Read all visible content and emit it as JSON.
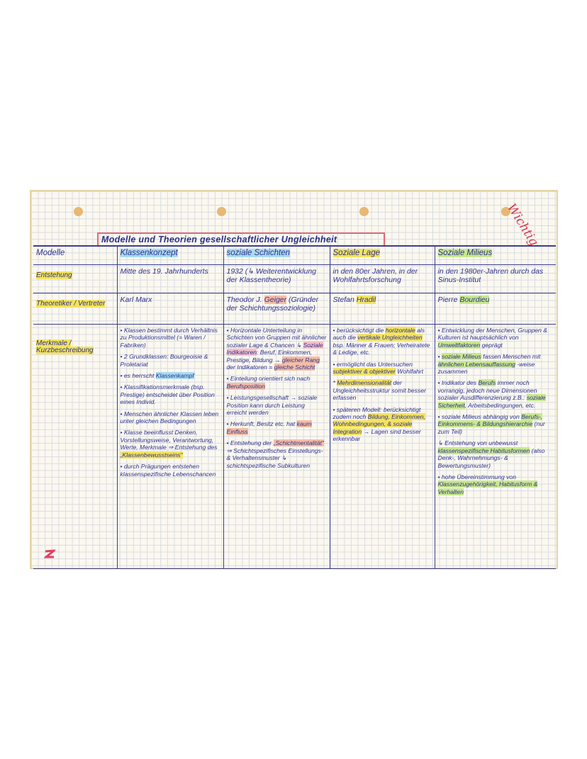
{
  "annotation": "Wichtig",
  "title": "Modelle und Theorien gesellschaftlicher Ungleichheit",
  "header": {
    "row_label": "Modelle",
    "columns": [
      {
        "label": "Klassenkonzept",
        "highlight": "blue"
      },
      {
        "label": "soziale Schichten",
        "highlight": "blue"
      },
      {
        "label": "Soziale Lage",
        "highlight": "yellow"
      },
      {
        "label": "Soziale Milieus",
        "highlight": "green"
      }
    ]
  },
  "rows": [
    {
      "label": "Entstehung",
      "highlight": "yellow",
      "cells": [
        "Mitte des 19. Jahrhunderts",
        "1932 (↳ Weiterentwicklung der Klassentheorie)",
        "in den 80er Jahren, in der Wohlfahrtsforschung",
        "in den 1980er-Jahren durch das Sinus-Institut"
      ]
    },
    {
      "label": "Theoretiker / Vertreter",
      "highlight": "yellow",
      "cells": [
        [
          [
            {
              "t": "Karl Marx"
            }
          ]
        ],
        [
          [
            {
              "t": "Theodor J. "
            },
            {
              "t": "Geiger",
              "hl": "orange"
            },
            {
              "t": " (Gründer der Schichtungssoziologie)"
            }
          ]
        ],
        [
          [
            {
              "t": "Stefan "
            },
            {
              "t": "Hradil",
              "hl": "yellow"
            }
          ]
        ],
        [
          [
            {
              "t": "Pierre "
            },
            {
              "t": "Bourdieu",
              "hl": "green"
            }
          ]
        ]
      ]
    },
    {
      "label": "Merkmale / Kurzbeschreibung",
      "highlight": "yellow",
      "cells": [
        [
          [
            {
              "t": "• Klassen bestimmt durch Verhältnis zu Produktionsmittel (= Waren / Fabriken)"
            }
          ],
          [
            {
              "t": "• 2 Grundklassen: Bourgeoisie & Proletariat"
            }
          ],
          [
            {
              "t": "• es herrscht "
            },
            {
              "t": "Klassenkampf",
              "hl": "blue"
            }
          ],
          [
            {
              "t": "• Klassifikationsmerkmale (bsp. Prestige) entscheidet über Position eines Individ."
            }
          ],
          [
            {
              "t": "• Menschen ähnlicher Klassen leben unter gleichen Bedingungen"
            }
          ],
          [
            {
              "t": "• Klasse beeinflusst Denken, Vorstellungsweise, Verantwortung, Werte, Merkmale ⇒ Entstehung des "
            },
            {
              "t": "„Klassenbewusstseins\"",
              "hl": "yellow"
            }
          ],
          [
            {
              "t": "• durch Prägungen entstehen klassenspezifische Lebenschancen"
            }
          ]
        ],
        [
          [
            {
              "t": "• Horizontale Unterteilung in Schichten von Gruppen mit ähnlicher sozialer Lage & Chancen ↳ "
            },
            {
              "t": "Soziale Indikatoren",
              "hl": "pink"
            },
            {
              "t": ": Beruf, Einkommen, Prestige, Bildung → "
            },
            {
              "t": "gleicher Rang",
              "hl": "orange"
            },
            {
              "t": " der Indikatoren = "
            },
            {
              "t": "gleiche Schicht",
              "hl": "orange"
            }
          ],
          [
            {
              "t": "• Einteilung orientiert sich nach "
            },
            {
              "t": "Berufsposition",
              "hl": "orange"
            }
          ],
          [
            {
              "t": "• Leistungsgesellschaft → soziale Position kann durch Leistung erreicht werden"
            }
          ],
          [
            {
              "t": "• Herkunft, Besitz etc. hat "
            },
            {
              "t": "kaum Einfluss",
              "hl": "orange"
            }
          ],
          [
            {
              "t": "• Entstehung der "
            },
            {
              "t": "„Schichtmentalität\"",
              "hl": "orange"
            },
            {
              "t": " ⇒ Schichtspezifisches Einstellungs- & Verhaltensmuster ↳ schichtspezifische Subkulturen"
            }
          ]
        ],
        [
          [
            {
              "t": "• berücksichtigt die "
            },
            {
              "t": "horizontale",
              "hl": "yellow"
            },
            {
              "t": " als auch die "
            },
            {
              "t": "vertikale Ungleichheiten",
              "hl": "yellow"
            },
            {
              "t": " bsp. Männer & Frauen; Verheiratete & Ledige, etc."
            }
          ],
          [
            {
              "t": "• ermöglicht das Untersuchen "
            },
            {
              "t": "subjektiver & objektiver",
              "hl": "yellow"
            },
            {
              "t": " Wohlfahrt"
            }
          ],
          [
            {
              "t": "* "
            },
            {
              "t": "Mehrdimensionalität",
              "hl": "yellow"
            },
            {
              "t": " der Ungleichheitsstruktur somit besser erfassen"
            }
          ],
          [
            {
              "t": "• späteren Modell: berücksichtigt zudem noch "
            },
            {
              "t": "Bildung, Einkommen, Wohnbedingungen, & soziale Integration",
              "hl": "yellow"
            },
            {
              "t": " → Lagen sind besser erkennbar"
            }
          ]
        ],
        [
          [
            {
              "t": "• Entwicklung der Menschen, Gruppen & Kulturen ist hauptsächlich von "
            },
            {
              "t": "Umweltfaktoren",
              "hl": "green"
            },
            {
              "t": " geprägt"
            }
          ],
          [
            {
              "t": "• "
            },
            {
              "t": "soziale Milieus",
              "hl": "green"
            },
            {
              "t": " fassen Menschen mit "
            },
            {
              "t": "ähnlichen Lebensauffassung",
              "hl": "green"
            },
            {
              "t": " -weise zusammen"
            }
          ],
          [
            {
              "t": "• Indikator des "
            },
            {
              "t": "Berufs",
              "hl": "green"
            },
            {
              "t": " immer noch vorrangig, jedoch neue Dimensionen sozialer Ausdifferenzierung z.B.: "
            },
            {
              "t": "soziale Sicherheit",
              "hl": "green"
            },
            {
              "t": ", Arbeitsbedingungen, etc."
            }
          ],
          [
            {
              "t": "• soziale Milieus abhängig von "
            },
            {
              "t": "Berufs-, Einkommens- & Bildungshierarchie",
              "hl": "green"
            },
            {
              "t": " (nur zum Teil)"
            }
          ],
          [
            {
              "t": "↳ Entstehung von unbewusst "
            },
            {
              "t": "klassenspezifische Habitusformen",
              "hl": "green"
            },
            {
              "t": " (also Denk-, Wahrnehmungs- & Bewertungsmuster)"
            }
          ],
          [
            {
              "t": "• hohe Übereinstimmung von "
            },
            {
              "t": "Klassenzugehörigkeit, Habitusform & Verhalten",
              "hl": "green"
            }
          ]
        ]
      ]
    }
  ],
  "colors": {
    "ink": "#2b3190",
    "title_box": "#e06a7a",
    "highlight_yellow": "#f4e35e",
    "highlight_green": "#c9e88e",
    "highlight_blue": "#a9dbef",
    "highlight_orange": "#f6bda4",
    "wichtig": "#d7374f"
  }
}
